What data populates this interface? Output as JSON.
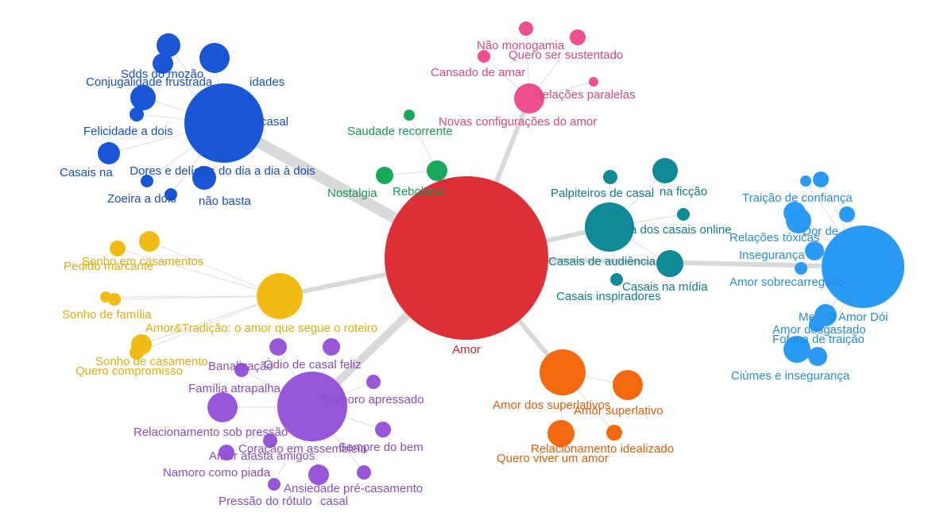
{
  "graph": {
    "center": {
      "label": "Amor",
      "color": "#dc2f36"
    },
    "clusters": [
      {
        "id": "blue",
        "color": "#1957d6",
        "hub_label": "Dores e delícias do dia a dia à dois",
        "weight": 3,
        "labels": [
          "Sdds do mozão",
          "Conjugalidade frustrada",
          "Felicidade a dois",
          "Casais na",
          "Zoeira a dois",
          "não basta",
          "casal",
          "idades"
        ]
      },
      {
        "id": "pink",
        "color": "#ef4f8f",
        "hub_label": "Novas configurações do amor",
        "weight": 1,
        "labels": [
          "Não monogamia",
          "Quero ser sustentado",
          "Cansado de amar",
          "Relações paralelas"
        ]
      },
      {
        "id": "green",
        "color": "#18a85a",
        "hub_label": "",
        "weight": 2,
        "labels": [
          "Saudade recorrente",
          "Rebobina",
          "Nostalgia"
        ]
      },
      {
        "id": "teal",
        "color": "#0f8a96",
        "hub_label": "Casais de audiência",
        "weight": 1,
        "labels": [
          "Palpiteiros de casal",
          "na ficção",
          "a dos casais online",
          "Casais na mídia",
          "Casais inspiradores"
        ]
      },
      {
        "id": "lightblue",
        "color": "#2b9af4",
        "hub_label": "O Amor Dói",
        "weight": 1,
        "labels": [
          "Traição de confiança",
          "Relações tóxicas",
          "Dor de",
          "Insegurança",
          "Amor sobrecarregado",
          "Me",
          "Amor desgastado",
          "Fofoca de traição",
          "Ciúmes e insegurança"
        ]
      },
      {
        "id": "yellow",
        "color": "#f0bc14",
        "hub_label": "Amor&Tradição: o amor que segue o roteiro",
        "weight": 1,
        "labels": [
          "Sonho em casamentos",
          "Pedido marcante",
          "Sonho de família",
          "Sonho de casamento",
          "Quero compromisso"
        ]
      },
      {
        "id": "purple",
        "color": "#9856d9",
        "hub_label": "Coração em assembleia",
        "weight": 2,
        "labels": [
          "Banalização",
          "Ódio de casal feliz",
          "Família atrapalha",
          "Namoro apressado",
          "Relacionamento sob pressão",
          "Sempre do bem",
          "Amor afasta amigos",
          "Namoro como piada",
          "Ansiedade pré-casamento",
          "Pressão do rótulo",
          "casal"
        ]
      },
      {
        "id": "orange",
        "color": "#f4680e",
        "hub_label": "Amor dos superlativos",
        "weight": 1,
        "labels": [
          "Amor superlativo",
          "Relacionamento idealizado",
          "Quero viver um amor"
        ]
      }
    ]
  }
}
